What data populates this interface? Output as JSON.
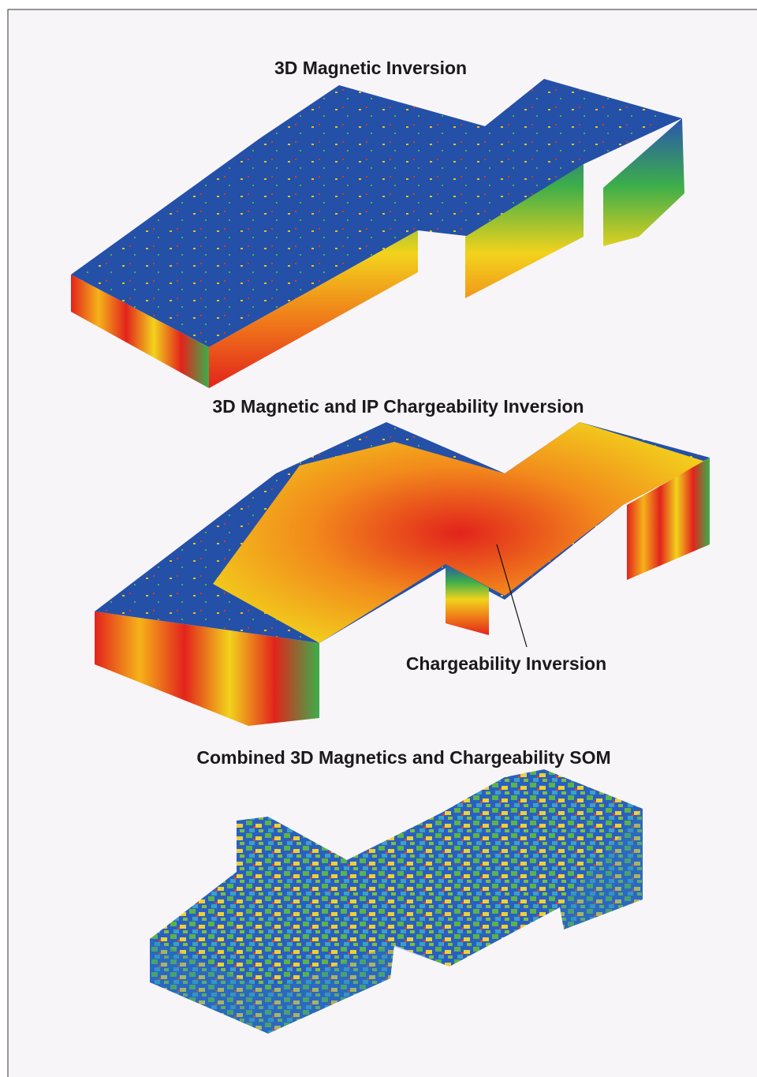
{
  "figures": [
    {
      "title": "3D Magnetic Inversion"
    },
    {
      "title": "3D Magnetic and IP Chargeability Inversion",
      "annotation": "Chargeability Inversion"
    },
    {
      "title": "Combined 3D Magnetics and Chargeability SOM"
    }
  ]
}
